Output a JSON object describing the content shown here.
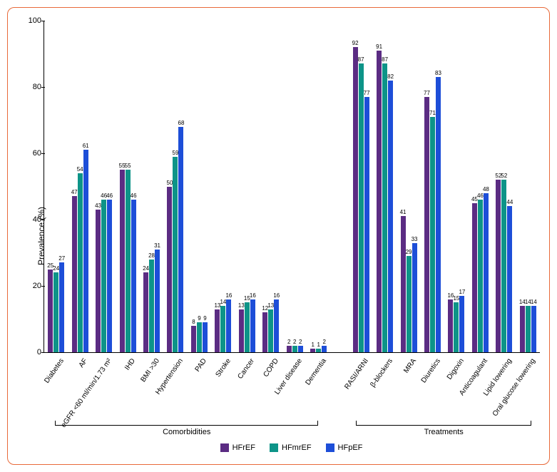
{
  "chart": {
    "type": "bar",
    "ylabel": "Prevalence (%)",
    "ylim": [
      0,
      100
    ],
    "ytick_step": 20,
    "background_color": "#ffffff",
    "border_color": "#e86a3a",
    "label_fontsize": 10,
    "value_fontsize": 8,
    "panels": [
      {
        "name": "Comorbidities",
        "categories": [
          {
            "label": "Diabetes",
            "values": [
              25,
              24,
              27
            ]
          },
          {
            "label": "AF",
            "values": [
              47,
              54,
              61
            ]
          },
          {
            "label": "eGFR <60 ml/min/1.73 m²",
            "values": [
              43,
              46,
              46
            ]
          },
          {
            "label": "IHD",
            "values": [
              55,
              55,
              46
            ]
          },
          {
            "label": "BMI >30",
            "values": [
              24,
              28,
              31
            ]
          },
          {
            "label": "Hypertension",
            "values": [
              50,
              59,
              68
            ]
          },
          {
            "label": "PAD",
            "values": [
              8,
              9,
              9
            ]
          },
          {
            "label": "Stroke",
            "values": [
              13,
              14,
              16
            ]
          },
          {
            "label": "Cancer",
            "values": [
              13,
              15,
              16
            ]
          },
          {
            "label": "COPD",
            "values": [
              12,
              13,
              16
            ]
          },
          {
            "label": "Liver disease",
            "values": [
              2,
              2,
              2
            ]
          },
          {
            "label": "Dementia",
            "values": [
              1,
              1,
              2
            ]
          }
        ]
      },
      {
        "name": "Treatments",
        "categories": [
          {
            "label": "RASI/ARNI",
            "values": [
              92,
              87,
              77
            ]
          },
          {
            "label": "β-blockers",
            "values": [
              91,
              87,
              82
            ]
          },
          {
            "label": "MRA",
            "values": [
              41,
              29,
              33
            ]
          },
          {
            "label": "Diuretics",
            "values": [
              77,
              71,
              83
            ]
          },
          {
            "label": "Digoxin",
            "values": [
              16,
              15,
              17
            ]
          },
          {
            "label": "Anticoagulant",
            "values": [
              45,
              46,
              48
            ]
          },
          {
            "label": "Lipid lowering",
            "values": [
              52,
              52,
              44
            ]
          },
          {
            "label": "Oral glucose lowering",
            "values": [
              14,
              14,
              14
            ]
          }
        ]
      }
    ],
    "series": [
      {
        "name": "HFrEF",
        "color": "#5b2c83"
      },
      {
        "name": "HFmrEF",
        "color": "#0d9488"
      },
      {
        "name": "HFpEF",
        "color": "#1d4ed8"
      }
    ]
  }
}
